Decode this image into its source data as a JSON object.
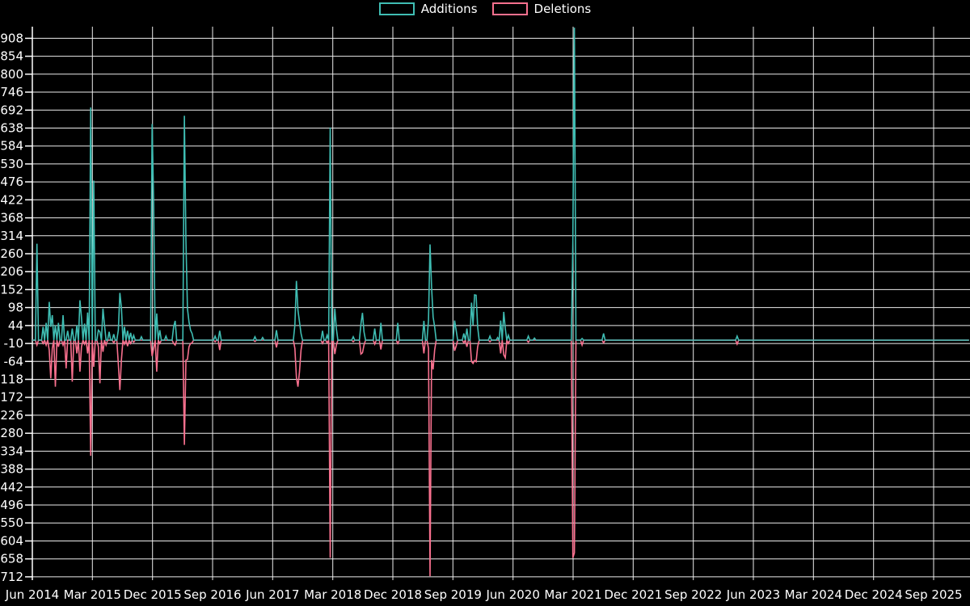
{
  "colors": {
    "background": "#000000",
    "grid": "#ececec",
    "axis": "#ffffff",
    "text": "#ffffff",
    "additions": "#3FBDB3",
    "deletions": "#F8708E"
  },
  "legend": {
    "items": [
      {
        "label": "Additions",
        "color": "#3FBDB3"
      },
      {
        "label": "Deletions",
        "color": "#F8708E"
      }
    ]
  },
  "chart_data": {
    "type": "line",
    "title": "",
    "xlabel": "",
    "ylabel": "",
    "grid": true,
    "legend_position": "top-center",
    "x_axis": {
      "tick_labels": [
        "Jun 2014",
        "Mar 2015",
        "Dec 2015",
        "Sep 2016",
        "Jun 2017",
        "Mar 2018",
        "Dec 2018",
        "Sep 2019",
        "Jun 2020",
        "Mar 2021",
        "Dec 2021",
        "Sep 2022",
        "Jun 2023",
        "Mar 2024",
        "Dec 2024",
        "Sep 2025"
      ],
      "unit": "week",
      "weeks_per_tick_interval": 39.13,
      "total_weeks": 611
    },
    "y_axis": {
      "tick_max": 908,
      "tick_min": -712,
      "tick_step": 54,
      "domain": [
        -722,
        943
      ]
    },
    "note": "Weekly code additions (positive) and deletions (negative). Weeks not listed in points have value 0.",
    "series": [
      {
        "name": "Additions",
        "color": "#3FBDB3",
        "baseline": 0,
        "points": [
          [
            3,
            290
          ],
          [
            7,
            40
          ],
          [
            9,
            52
          ],
          [
            11,
            115
          ],
          [
            12,
            40
          ],
          [
            13,
            75
          ],
          [
            15,
            45
          ],
          [
            17,
            52
          ],
          [
            20,
            75
          ],
          [
            23,
            28
          ],
          [
            26,
            35
          ],
          [
            29,
            45
          ],
          [
            31,
            120
          ],
          [
            32,
            68
          ],
          [
            34,
            50
          ],
          [
            36,
            83
          ],
          [
            38,
            700
          ],
          [
            40,
            480
          ],
          [
            43,
            30
          ],
          [
            44,
            25
          ],
          [
            46,
            95
          ],
          [
            47,
            45
          ],
          [
            50,
            25
          ],
          [
            53,
            18
          ],
          [
            56,
            30
          ],
          [
            57,
            142
          ],
          [
            58,
            98
          ],
          [
            60,
            40
          ],
          [
            62,
            28
          ],
          [
            64,
            22
          ],
          [
            66,
            14
          ],
          [
            71,
            10
          ],
          [
            78,
            650
          ],
          [
            79,
            410
          ],
          [
            81,
            80
          ],
          [
            83,
            30
          ],
          [
            87,
            12
          ],
          [
            92,
            40
          ],
          [
            93,
            58
          ],
          [
            99,
            675
          ],
          [
            100,
            300
          ],
          [
            101,
            95
          ],
          [
            102,
            55
          ],
          [
            103,
            30
          ],
          [
            104,
            20
          ],
          [
            119,
            12
          ],
          [
            122,
            28
          ],
          [
            145,
            10
          ],
          [
            150,
            8
          ],
          [
            159,
            30
          ],
          [
            171,
            45
          ],
          [
            172,
            178
          ],
          [
            173,
            90
          ],
          [
            174,
            55
          ],
          [
            175,
            20
          ],
          [
            189,
            28
          ],
          [
            192,
            15
          ],
          [
            194,
            640
          ],
          [
            197,
            95
          ],
          [
            198,
            35
          ],
          [
            209,
            10
          ],
          [
            214,
            48
          ],
          [
            215,
            82
          ],
          [
            216,
            25
          ],
          [
            223,
            35
          ],
          [
            227,
            52
          ],
          [
            238,
            52
          ],
          [
            255,
            58
          ],
          [
            258,
            60
          ],
          [
            259,
            288
          ],
          [
            260,
            160
          ],
          [
            261,
            70
          ],
          [
            262,
            40
          ],
          [
            275,
            59
          ],
          [
            276,
            30
          ],
          [
            281,
            20
          ],
          [
            283,
            35
          ],
          [
            286,
            113
          ],
          [
            287,
            45
          ],
          [
            288,
            136
          ],
          [
            289,
            135
          ],
          [
            290,
            40
          ],
          [
            298,
            12
          ],
          [
            303,
            8
          ],
          [
            305,
            59
          ],
          [
            307,
            85
          ],
          [
            308,
            35
          ],
          [
            310,
            15
          ],
          [
            323,
            12
          ],
          [
            327,
            6
          ],
          [
            352,
            300
          ],
          [
            353,
            940
          ],
          [
            358,
            5
          ],
          [
            372,
            20
          ],
          [
            459,
            12
          ]
        ]
      },
      {
        "name": "Deletions",
        "color": "#F8708E",
        "baseline": 0,
        "points": [
          [
            3,
            -15
          ],
          [
            7,
            -10
          ],
          [
            9,
            -15
          ],
          [
            11,
            -30
          ],
          [
            12,
            -115
          ],
          [
            13,
            -25
          ],
          [
            15,
            -140
          ],
          [
            17,
            -20
          ],
          [
            20,
            -15
          ],
          [
            22,
            -85
          ],
          [
            26,
            -125
          ],
          [
            29,
            -40
          ],
          [
            31,
            -95
          ],
          [
            32,
            -20
          ],
          [
            34,
            -12
          ],
          [
            36,
            -40
          ],
          [
            38,
            -348
          ],
          [
            40,
            -80
          ],
          [
            43,
            -20
          ],
          [
            44,
            -130
          ],
          [
            46,
            -35
          ],
          [
            48,
            -15
          ],
          [
            53,
            -8
          ],
          [
            56,
            -72
          ],
          [
            57,
            -150
          ],
          [
            58,
            -60
          ],
          [
            60,
            -12
          ],
          [
            62,
            -18
          ],
          [
            64,
            -10
          ],
          [
            66,
            -6
          ],
          [
            78,
            -48
          ],
          [
            79,
            -25
          ],
          [
            81,
            -95
          ],
          [
            83,
            -10
          ],
          [
            92,
            -10
          ],
          [
            93,
            -15
          ],
          [
            99,
            -315
          ],
          [
            100,
            -60
          ],
          [
            101,
            -58
          ],
          [
            102,
            -20
          ],
          [
            103,
            -10
          ],
          [
            104,
            -8
          ],
          [
            119,
            -5
          ],
          [
            122,
            -30
          ],
          [
            145,
            -4
          ],
          [
            159,
            -22
          ],
          [
            171,
            -25
          ],
          [
            172,
            -112
          ],
          [
            173,
            -140
          ],
          [
            174,
            -95
          ],
          [
            175,
            -30
          ],
          [
            189,
            -10
          ],
          [
            192,
            -8
          ],
          [
            194,
            -655
          ],
          [
            197,
            -42
          ],
          [
            198,
            -15
          ],
          [
            209,
            -5
          ],
          [
            214,
            -42
          ],
          [
            215,
            -38
          ],
          [
            216,
            -15
          ],
          [
            223,
            -12
          ],
          [
            227,
            -28
          ],
          [
            238,
            -10
          ],
          [
            255,
            -40
          ],
          [
            258,
            -25
          ],
          [
            259,
            -710
          ],
          [
            260,
            -60
          ],
          [
            261,
            -88
          ],
          [
            262,
            -30
          ],
          [
            275,
            -32
          ],
          [
            276,
            -18
          ],
          [
            281,
            -8
          ],
          [
            283,
            -20
          ],
          [
            286,
            -64
          ],
          [
            287,
            -70
          ],
          [
            288,
            -61
          ],
          [
            289,
            -65
          ],
          [
            290,
            -20
          ],
          [
            298,
            -5
          ],
          [
            305,
            -40
          ],
          [
            307,
            -44
          ],
          [
            308,
            -53
          ],
          [
            310,
            -10
          ],
          [
            323,
            -6
          ],
          [
            352,
            -655
          ],
          [
            353,
            -640
          ],
          [
            358,
            -15
          ],
          [
            372,
            -8
          ],
          [
            459,
            -12
          ]
        ]
      }
    ]
  }
}
